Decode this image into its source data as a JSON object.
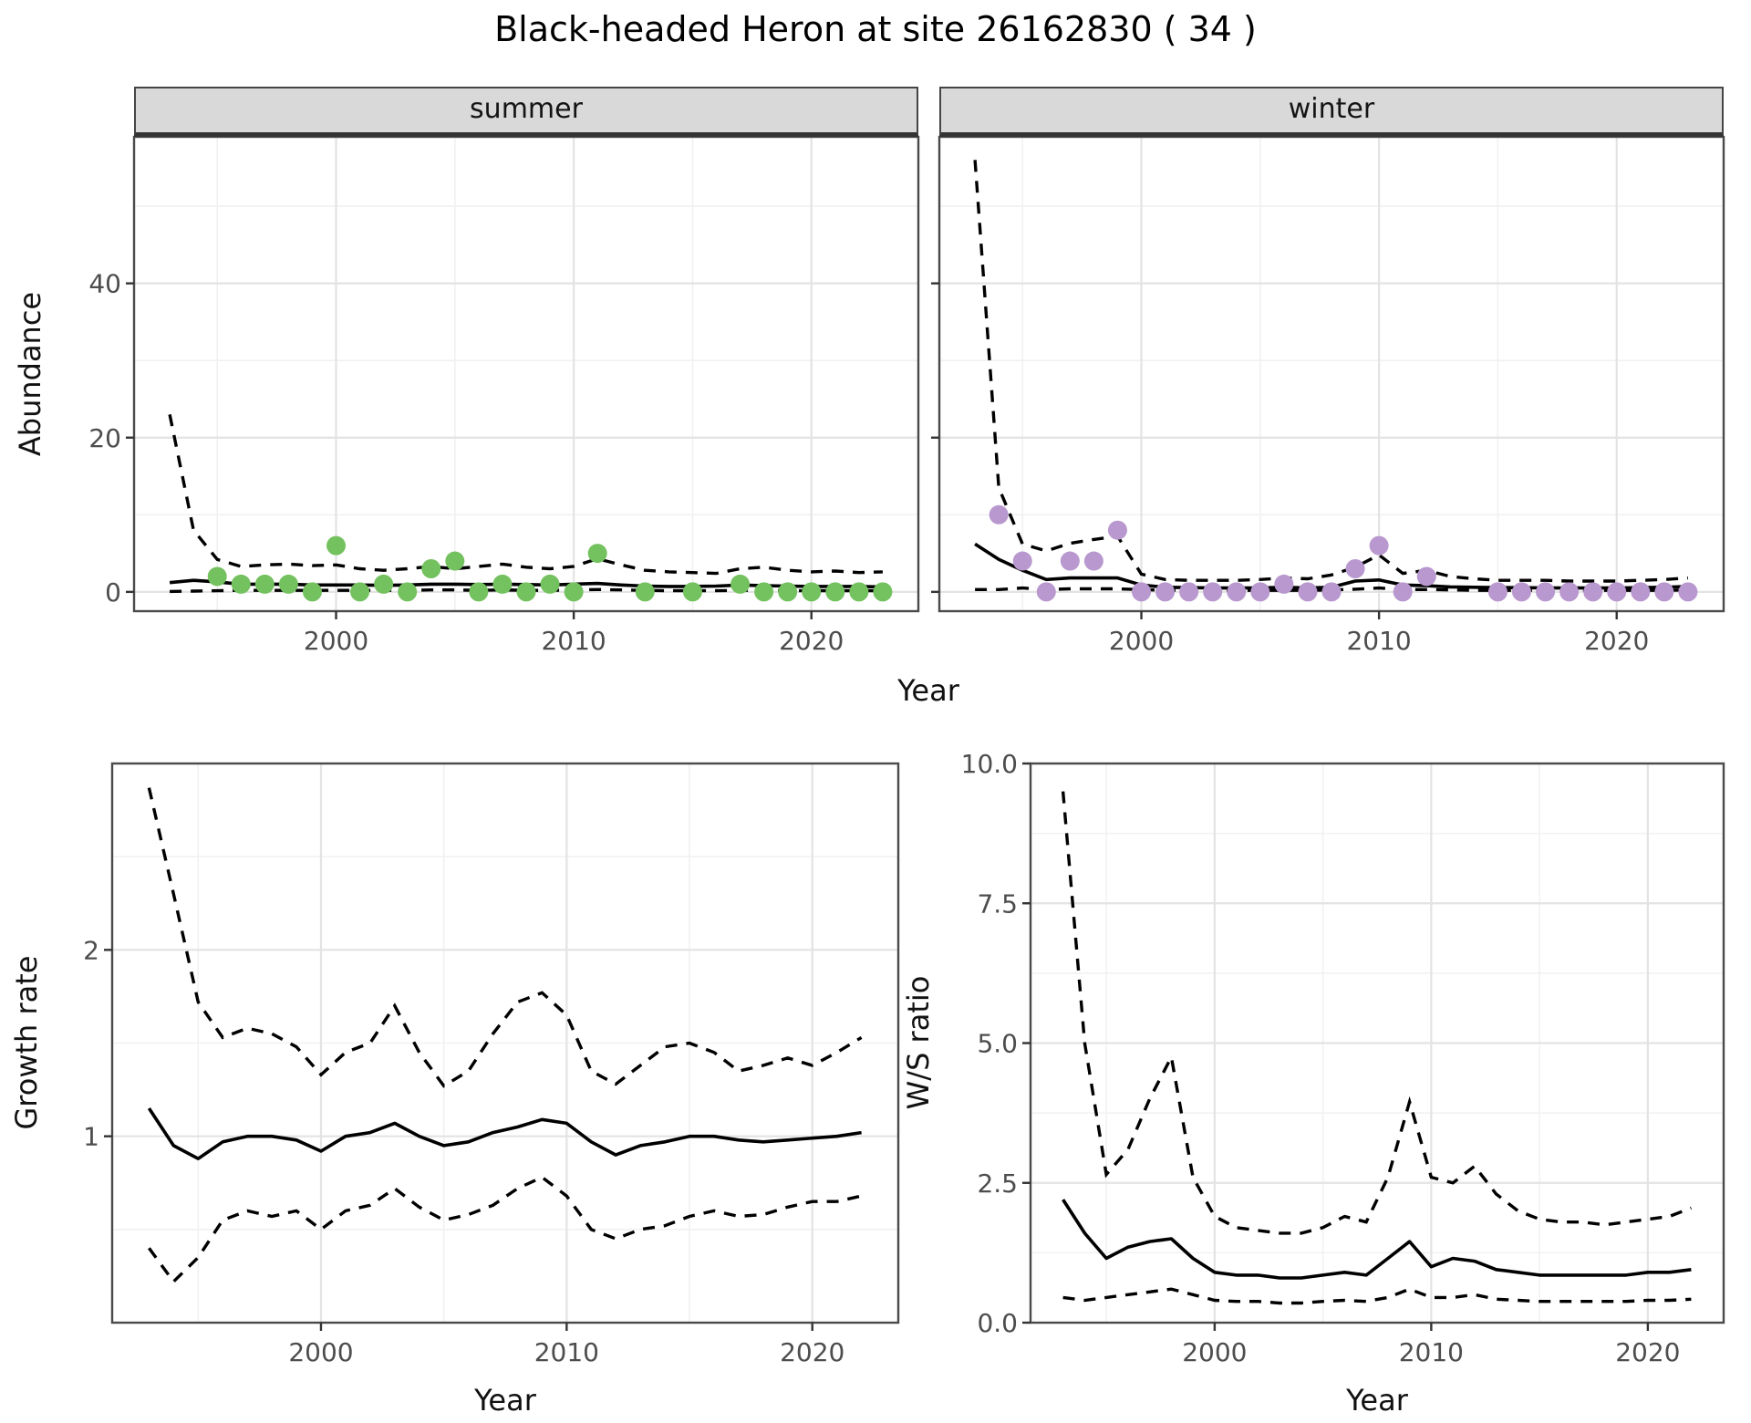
{
  "title": "Black-headed Heron at site 26162830 ( 34 )",
  "facets": {
    "summer": "summer",
    "winter": "winter"
  },
  "axis_labels": {
    "abundance": "Abundance",
    "year_top": "Year",
    "growth_rate": "Growth rate",
    "ws_ratio": "W/S ratio",
    "year_bottom_left": "Year",
    "year_bottom_right": "Year"
  },
  "colors": {
    "summer_points": "#74C15F",
    "winter_points": "#B898CE",
    "line": "#000000",
    "grid_major": "#e3e3e3",
    "grid_minor": "#f1f1f1",
    "strip_bg": "#d9d9d9",
    "panel_border": "#4a4a4a",
    "tick_text": "#4d4d4d"
  },
  "chart_data": [
    {
      "id": "abundance-summer",
      "type": "line",
      "title": "summer",
      "xlabel": "Year",
      "ylabel": "Abundance",
      "xlim": [
        1991.5,
        2024.5
      ],
      "ylim": [
        -2.5,
        59
      ],
      "x_ticks": [
        2000,
        2010,
        2020
      ],
      "x_tick_labels": [
        "2000",
        "2010",
        "2020"
      ],
      "x_minor": [
        1995,
        2005,
        2015
      ],
      "y_ticks": [
        0,
        20,
        40
      ],
      "y_tick_labels": [
        "0",
        "20",
        "40"
      ],
      "y_minor": [
        10,
        30,
        50
      ],
      "years": [
        1993,
        1994,
        1995,
        1996,
        1997,
        1998,
        1999,
        2000,
        2001,
        2002,
        2003,
        2004,
        2005,
        2006,
        2007,
        2008,
        2009,
        2010,
        2011,
        2012,
        2013,
        2014,
        2015,
        2016,
        2017,
        2018,
        2019,
        2020,
        2021,
        2022,
        2023
      ],
      "median": [
        1.2,
        1.5,
        1.3,
        1.0,
        1.0,
        1.0,
        0.9,
        0.9,
        0.9,
        0.85,
        0.9,
        1.0,
        1.0,
        0.95,
        1.0,
        0.95,
        0.9,
        1.0,
        1.1,
        0.9,
        0.75,
        0.7,
        0.7,
        0.75,
        0.9,
        0.8,
        0.75,
        0.7,
        0.7,
        0.7,
        0.65
      ],
      "upper": [
        23,
        8,
        4.2,
        3.3,
        3.5,
        3.6,
        3.4,
        3.5,
        3.0,
        2.8,
        3.0,
        3.3,
        3.0,
        3.3,
        3.6,
        3.2,
        3.0,
        3.3,
        4.3,
        3.5,
        2.8,
        2.6,
        2.5,
        2.4,
        3.0,
        3.2,
        2.8,
        2.6,
        2.7,
        2.5,
        2.6
      ],
      "lower": [
        0.05,
        0.1,
        0.15,
        0.2,
        0.2,
        0.2,
        0.2,
        0.2,
        0.2,
        0.2,
        0.2,
        0.25,
        0.25,
        0.2,
        0.25,
        0.2,
        0.2,
        0.25,
        0.3,
        0.25,
        0.2,
        0.15,
        0.15,
        0.15,
        0.2,
        0.2,
        0.15,
        0.15,
        0.15,
        0.15,
        0.15
      ],
      "points": {
        "years": [
          1995,
          1996,
          1997,
          1998,
          1999,
          2000,
          2001,
          2002,
          2003,
          2004,
          2005,
          2006,
          2007,
          2008,
          2009,
          2010,
          2011,
          2013,
          2015,
          2017,
          2018,
          2019,
          2020,
          2021,
          2022,
          2023
        ],
        "values": [
          2,
          1,
          1,
          1,
          0,
          6,
          0,
          1,
          0,
          3,
          4,
          0,
          1,
          0,
          1,
          0,
          5,
          0,
          0,
          1,
          0,
          0,
          0,
          0,
          0,
          0
        ]
      },
      "point_color": "#74C15F"
    },
    {
      "id": "abundance-winter",
      "type": "line",
      "title": "winter",
      "xlabel": "Year",
      "ylabel": "Abundance",
      "xlim": [
        1991.5,
        2024.5
      ],
      "ylim": [
        -2.5,
        59
      ],
      "x_ticks": [
        2000,
        2010,
        2020
      ],
      "x_tick_labels": [
        "2000",
        "2010",
        "2020"
      ],
      "x_minor": [
        1995,
        2005,
        2015
      ],
      "y_ticks": [
        0,
        20,
        40
      ],
      "y_tick_labels": [
        "0",
        "20",
        "40"
      ],
      "y_minor": [
        10,
        30,
        50
      ],
      "years": [
        1993,
        1994,
        1995,
        1996,
        1997,
        1998,
        1999,
        2000,
        2001,
        2002,
        2003,
        2004,
        2005,
        2006,
        2007,
        2008,
        2009,
        2010,
        2011,
        2012,
        2013,
        2014,
        2015,
        2016,
        2017,
        2018,
        2019,
        2020,
        2021,
        2022,
        2023
      ],
      "median": [
        6.2,
        4.2,
        2.8,
        1.6,
        1.8,
        1.8,
        1.8,
        0.9,
        0.6,
        0.55,
        0.5,
        0.5,
        0.5,
        0.6,
        0.5,
        0.6,
        1.4,
        1.55,
        0.9,
        0.8,
        0.65,
        0.6,
        0.55,
        0.55,
        0.5,
        0.5,
        0.5,
        0.5,
        0.55,
        0.6,
        0.7
      ],
      "upper": [
        56,
        13.5,
        6.2,
        5.3,
        6.3,
        6.8,
        7.2,
        2.3,
        1.6,
        1.5,
        1.5,
        1.5,
        1.6,
        1.8,
        1.7,
        2.2,
        3.2,
        4.8,
        2.4,
        2.8,
        2.0,
        1.7,
        1.5,
        1.5,
        1.5,
        1.4,
        1.4,
        1.4,
        1.5,
        1.6,
        1.8
      ],
      "lower": [
        0.3,
        0.3,
        0.5,
        0.3,
        0.4,
        0.4,
        0.4,
        0.3,
        0.2,
        0.2,
        0.2,
        0.2,
        0.2,
        0.2,
        0.2,
        0.25,
        0.35,
        0.5,
        0.3,
        0.3,
        0.25,
        0.2,
        0.2,
        0.2,
        0.2,
        0.2,
        0.2,
        0.2,
        0.2,
        0.2,
        0.25
      ],
      "points": {
        "years": [
          1994,
          1995,
          1996,
          1997,
          1998,
          1999,
          2000,
          2001,
          2002,
          2003,
          2004,
          2005,
          2006,
          2007,
          2008,
          2009,
          2010,
          2011,
          2012,
          2015,
          2016,
          2017,
          2018,
          2019,
          2020,
          2021,
          2022,
          2023
        ],
        "values": [
          10,
          4,
          0,
          4,
          4,
          8,
          0,
          0,
          0,
          0,
          0,
          0,
          1,
          0,
          0,
          3,
          6,
          0,
          2,
          0,
          0,
          0,
          0,
          0,
          0,
          0,
          0,
          0
        ]
      },
      "point_color": "#B898CE"
    },
    {
      "id": "growth-rate",
      "type": "line",
      "title": "",
      "xlabel": "Year",
      "ylabel": "Growth rate",
      "xlim": [
        1991.5,
        2023.5
      ],
      "ylim": [
        0,
        3
      ],
      "x_ticks": [
        2000,
        2010,
        2020
      ],
      "x_tick_labels": [
        "2000",
        "2010",
        "2020"
      ],
      "x_minor": [
        1995,
        2005,
        2015
      ],
      "y_ticks": [
        1,
        2
      ],
      "y_tick_labels": [
        "1",
        "2"
      ],
      "y_minor": [
        0.5,
        1.5,
        2.5
      ],
      "years": [
        1993,
        1994,
        1995,
        1996,
        1997,
        1998,
        1999,
        2000,
        2001,
        2002,
        2003,
        2004,
        2005,
        2006,
        2007,
        2008,
        2009,
        2010,
        2011,
        2012,
        2013,
        2014,
        2015,
        2016,
        2017,
        2018,
        2019,
        2020,
        2021,
        2022
      ],
      "median": [
        1.15,
        0.95,
        0.88,
        0.97,
        1.0,
        1.0,
        0.98,
        0.92,
        1.0,
        1.02,
        1.07,
        1.0,
        0.95,
        0.97,
        1.02,
        1.05,
        1.09,
        1.07,
        0.97,
        0.9,
        0.95,
        0.97,
        1.0,
        1.0,
        0.98,
        0.97,
        0.98,
        0.99,
        1.0,
        1.02
      ],
      "upper": [
        2.87,
        2.3,
        1.72,
        1.53,
        1.58,
        1.55,
        1.48,
        1.33,
        1.45,
        1.5,
        1.7,
        1.45,
        1.27,
        1.35,
        1.55,
        1.72,
        1.77,
        1.65,
        1.35,
        1.28,
        1.38,
        1.48,
        1.5,
        1.45,
        1.35,
        1.38,
        1.42,
        1.38,
        1.45,
        1.53
      ],
      "lower": [
        0.4,
        0.22,
        0.35,
        0.55,
        0.6,
        0.57,
        0.6,
        0.5,
        0.6,
        0.63,
        0.72,
        0.62,
        0.55,
        0.58,
        0.63,
        0.72,
        0.78,
        0.68,
        0.5,
        0.45,
        0.5,
        0.52,
        0.57,
        0.6,
        0.57,
        0.58,
        0.62,
        0.65,
        0.65,
        0.68
      ]
    },
    {
      "id": "ws-ratio",
      "type": "line",
      "title": "",
      "xlabel": "Year",
      "ylabel": "W/S ratio",
      "xlim": [
        1991.5,
        2023.5
      ],
      "ylim": [
        0,
        10
      ],
      "x_ticks": [
        2000,
        2010,
        2020
      ],
      "x_tick_labels": [
        "2000",
        "2010",
        "2020"
      ],
      "x_minor": [
        1995,
        2005,
        2015
      ],
      "y_ticks": [
        0,
        2.5,
        5,
        7.5,
        10
      ],
      "y_tick_labels": [
        "0.0",
        "2.5",
        "5.0",
        "7.5",
        "10.0"
      ],
      "y_minor": [
        1.25,
        3.75,
        6.25,
        8.75
      ],
      "years": [
        1993,
        1994,
        1995,
        1996,
        1997,
        1998,
        1999,
        2000,
        2001,
        2002,
        2003,
        2004,
        2005,
        2006,
        2007,
        2008,
        2009,
        2010,
        2011,
        2012,
        2013,
        2014,
        2015,
        2016,
        2017,
        2018,
        2019,
        2020,
        2021,
        2022
      ],
      "median": [
        2.2,
        1.6,
        1.15,
        1.35,
        1.45,
        1.5,
        1.15,
        0.9,
        0.85,
        0.85,
        0.8,
        0.8,
        0.85,
        0.9,
        0.85,
        1.15,
        1.45,
        1.0,
        1.15,
        1.1,
        0.95,
        0.9,
        0.85,
        0.85,
        0.85,
        0.85,
        0.85,
        0.9,
        0.9,
        0.95
      ],
      "upper": [
        9.5,
        5.0,
        2.65,
        3.1,
        4.0,
        4.75,
        2.6,
        1.9,
        1.7,
        1.65,
        1.6,
        1.6,
        1.7,
        1.9,
        1.8,
        2.6,
        3.95,
        2.6,
        2.5,
        2.8,
        2.3,
        2.0,
        1.85,
        1.8,
        1.8,
        1.75,
        1.8,
        1.85,
        1.9,
        2.05
      ],
      "lower": [
        0.45,
        0.4,
        0.45,
        0.5,
        0.55,
        0.6,
        0.5,
        0.4,
        0.38,
        0.38,
        0.35,
        0.35,
        0.38,
        0.4,
        0.38,
        0.45,
        0.6,
        0.45,
        0.45,
        0.5,
        0.42,
        0.4,
        0.38,
        0.38,
        0.38,
        0.38,
        0.38,
        0.4,
        0.4,
        0.42
      ]
    }
  ]
}
